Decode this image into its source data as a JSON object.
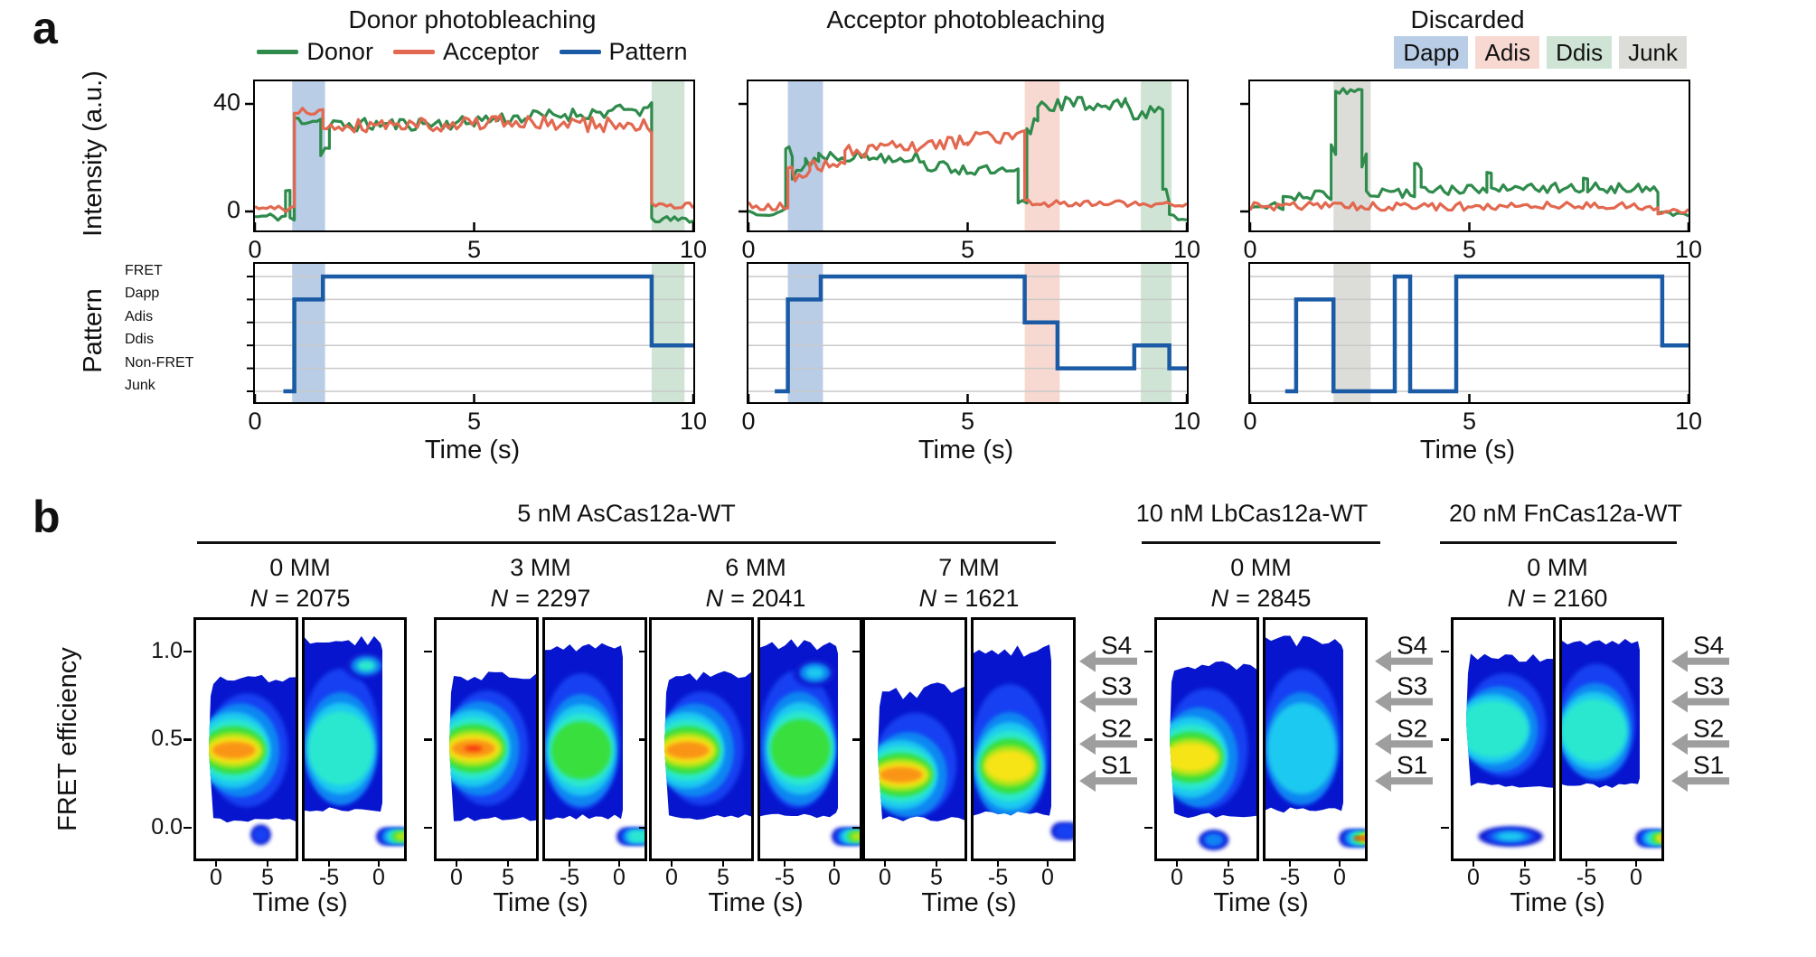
{
  "panel_labels": {
    "a": "a",
    "b": "b"
  },
  "colors": {
    "donor": "#2e8b4b",
    "acceptor": "#e2684f",
    "pattern": "#1b5aa5",
    "grid": "#c9c9c9",
    "arrow": "#9e9e9e",
    "shades": {
      "Dapp": "#b9cde6",
      "Adis": "#f8d9d2",
      "Ddis": "#cfe4d4",
      "Junk": "#dcdcd8"
    },
    "jet": [
      "#0716ce",
      "#1440f2",
      "#0f86f2",
      "#1fc9f0",
      "#2be8cf",
      "#38df3c",
      "#a8e51e",
      "#f7e414",
      "#fa9414",
      "#f5330f",
      "#ffffff"
    ]
  },
  "chart_data": {
    "type": "figure",
    "panel_a": {
      "type": "line",
      "intensity_ylabel": "Intensity (a.u.)",
      "pattern_ylabel": "Pattern",
      "xlabel": "Time (s)",
      "xlim": [
        0,
        10
      ],
      "x_ticks": [
        "0",
        "5",
        "10"
      ],
      "intensity_ylim": [
        -8,
        48
      ],
      "intensity_yticks": [
        "40",
        "0"
      ],
      "pattern_categories": [
        "FRET",
        "Dapp",
        "Adis",
        "Ddis",
        "Non-FRET",
        "Junk"
      ],
      "legend": [
        {
          "label": "Donor",
          "color": "#2e8b4b"
        },
        {
          "label": "Acceptor",
          "color": "#e2684f"
        },
        {
          "label": "Pattern",
          "color": "#1b5aa5"
        }
      ],
      "columns": [
        {
          "title": "Donor photobleaching",
          "shades": [
            {
              "t0": 0.85,
              "t1": 1.6,
              "type": "Dapp"
            },
            {
              "t0": 9.05,
              "t1": 9.8,
              "type": "Ddis"
            }
          ],
          "donor_segments": [
            [
              0,
              0.7,
              -2,
              -2,
              1.5
            ],
            [
              0.7,
              0.8,
              8,
              8,
              3
            ],
            [
              0.8,
              0.9,
              -3,
              -3,
              1
            ],
            [
              0.9,
              1.5,
              34,
              34,
              2
            ],
            [
              1.5,
              1.7,
              23,
              23,
              3
            ],
            [
              1.7,
              5,
              32,
              33,
              2.5
            ],
            [
              5,
              9.05,
              34,
              38,
              2.5
            ],
            [
              9.05,
              10,
              -3,
              -3,
              1.2
            ]
          ],
          "acceptor_segments": [
            [
              0,
              0.9,
              1,
              1,
              1.2
            ],
            [
              0.9,
              1.55,
              37,
              37,
              1.5
            ],
            [
              1.55,
              5.5,
              32,
              33,
              2.8
            ],
            [
              5.5,
              9.05,
              33,
              32,
              3
            ],
            [
              9.05,
              10,
              2,
              2,
              1.2
            ]
          ],
          "pattern_steps": [
            [
              0.65,
              0.9,
              "Junk"
            ],
            [
              0.9,
              1.55,
              "Dapp"
            ],
            [
              1.55,
              9.05,
              "FRET"
            ],
            [
              9.05,
              10,
              "Ddis"
            ]
          ]
        },
        {
          "title": "Acceptor photobleaching",
          "shades": [
            {
              "t0": 0.9,
              "t1": 1.7,
              "type": "Dapp"
            },
            {
              "t0": 6.3,
              "t1": 7.1,
              "type": "Adis"
            },
            {
              "t0": 8.95,
              "t1": 9.65,
              "type": "Ddis"
            }
          ],
          "donor_segments": [
            [
              0,
              0.85,
              0,
              0,
              1.5
            ],
            [
              0.85,
              1.0,
              22,
              22,
              4
            ],
            [
              1.0,
              1.3,
              14,
              17,
              3
            ],
            [
              1.3,
              1.6,
              19,
              19,
              3
            ],
            [
              1.6,
              4,
              21,
              20,
              2.2
            ],
            [
              4,
              6.15,
              17,
              14,
              2.2
            ],
            [
              6.15,
              6.35,
              3,
              3,
              2
            ],
            [
              6.35,
              6.6,
              28,
              36,
              4
            ],
            [
              6.6,
              8.6,
              40,
              40,
              3
            ],
            [
              8.6,
              9.45,
              38,
              36,
              3.5
            ],
            [
              9.45,
              9.6,
              6,
              6,
              3
            ],
            [
              9.6,
              10,
              -2,
              -2,
              1.2
            ]
          ],
          "acceptor_segments": [
            [
              0,
              0.9,
              2,
              2,
              1.5
            ],
            [
              0.9,
              1.4,
              14,
              14,
              3
            ],
            [
              1.4,
              2.2,
              17,
              17,
              2.2
            ],
            [
              2.2,
              5,
              22,
              26,
              2.5
            ],
            [
              5,
              6.3,
              27,
              28,
              2.5
            ],
            [
              6.3,
              10,
              3,
              3,
              1.3
            ]
          ],
          "pattern_steps": [
            [
              0.6,
              0.9,
              "Junk"
            ],
            [
              0.9,
              1.65,
              "Dapp"
            ],
            [
              1.65,
              6.3,
              "FRET"
            ],
            [
              6.3,
              7.05,
              "Adis"
            ],
            [
              7.05,
              8.8,
              "Non-FRET"
            ],
            [
              8.8,
              9.6,
              "Ddis"
            ],
            [
              9.6,
              10,
              "Non-FRET"
            ]
          ]
        },
        {
          "title": "Discarded",
          "badges": [
            {
              "label": "Dapp",
              "type": "Dapp"
            },
            {
              "label": "Adis",
              "type": "Adis"
            },
            {
              "label": "Ddis",
              "type": "Ddis"
            },
            {
              "label": "Junk",
              "type": "Junk"
            }
          ],
          "shades": [
            {
              "t0": 1.9,
              "t1": 2.75,
              "type": "Junk"
            }
          ],
          "donor_segments": [
            [
              0,
              0.75,
              2,
              2,
              1.5
            ],
            [
              0.75,
              1.85,
              6,
              6,
              1.8
            ],
            [
              1.85,
              1.95,
              25,
              25,
              4
            ],
            [
              1.95,
              2.55,
              45,
              45,
              1.5
            ],
            [
              2.55,
              2.65,
              20,
              20,
              4
            ],
            [
              2.65,
              3.75,
              7,
              7,
              1.8
            ],
            [
              3.75,
              3.9,
              17,
              17,
              2
            ],
            [
              3.9,
              5.4,
              8,
              8,
              1.8
            ],
            [
              5.4,
              5.5,
              13,
              13,
              2
            ],
            [
              5.5,
              7.6,
              8,
              9,
              2
            ],
            [
              7.6,
              7.7,
              14,
              14,
              2
            ],
            [
              7.7,
              9.3,
              9,
              8,
              2
            ],
            [
              9.3,
              10,
              -1,
              -1,
              1
            ]
          ],
          "acceptor_segments": [
            [
              0,
              9.3,
              2,
              2,
              1.6
            ],
            [
              9.3,
              10,
              0,
              0,
              1
            ]
          ],
          "pattern_steps": [
            [
              0.8,
              1.05,
              "Junk"
            ],
            [
              1.05,
              1.9,
              "Dapp"
            ],
            [
              1.9,
              3.3,
              "Junk"
            ],
            [
              3.3,
              3.65,
              "FRET"
            ],
            [
              3.65,
              4.7,
              "Junk"
            ],
            [
              4.7,
              9.4,
              "FRET"
            ],
            [
              9.4,
              10,
              "Ddis"
            ]
          ]
        }
      ]
    },
    "panel_b": {
      "type": "heatmap",
      "ylabel": "FRET efficiency",
      "xlabel": "Time (s)",
      "ylim": [
        -0.18,
        1.18
      ],
      "y_ticks": [
        "1.0",
        "0.5",
        "0.0"
      ],
      "left_xticks": [
        "0",
        "5"
      ],
      "right_xticks": [
        "-5",
        "0"
      ],
      "states": {
        "labels": [
          "S4",
          "S3",
          "S2",
          "S1"
        ],
        "values": [
          0.93,
          0.7,
          0.46,
          0.25
        ]
      },
      "groups": [
        {
          "title": "5 nM AsCas12a-WT",
          "panel_indices": [
            0,
            1,
            2,
            3
          ]
        },
        {
          "title": "10 nM LbCas12a-WT",
          "panel_indices": [
            4
          ]
        },
        {
          "title": "20 nM FnCas12a-WT",
          "panel_indices": [
            5
          ]
        }
      ],
      "panels": [
        {
          "condition": "0 MM",
          "n_sym": "N",
          "n_val": "= 2075",
          "n": 2075,
          "left": {
            "top": 0.84,
            "bottom": 0.04,
            "band": 0.44,
            "heat": 9,
            "hotx": 0.28,
            "tail": {
              "x0": 0.55,
              "x1": 0.75,
              "e": -0.04,
              "heat": 2
            }
          },
          "right": {
            "top": 1.06,
            "bottom": 0.1,
            "band": 0.45,
            "heat": 5,
            "hotx": 0.5,
            "blob": {
              "x": 0.62,
              "e": 0.92,
              "heat": 5
            },
            "bb": {
              "e": -0.05,
              "heat": 7,
              "x0": 0.72
            }
          }
        },
        {
          "condition": "3 MM",
          "n_sym": "N",
          "n_val": "= 2297",
          "n": 2297,
          "left": {
            "top": 0.86,
            "bottom": 0.05,
            "band": 0.45,
            "heat": 10,
            "hotx": 0.27
          },
          "right": {
            "top": 1.02,
            "bottom": 0.06,
            "band": 0.44,
            "heat": 6,
            "hotx": 0.5,
            "bb": {
              "e": -0.05,
              "heat": 5,
              "x0": 0.72
            }
          }
        },
        {
          "condition": "6 MM",
          "n_sym": "N",
          "n_val": "= 2041",
          "n": 2041,
          "left": {
            "top": 0.86,
            "bottom": 0.06,
            "band": 0.44,
            "heat": 9,
            "hotx": 0.26
          },
          "right": {
            "top": 1.04,
            "bottom": 0.07,
            "band": 0.45,
            "heat": 6,
            "hotx": 0.55,
            "blob": {
              "x": 0.55,
              "e": 0.88,
              "heat": 4
            },
            "bb": {
              "e": -0.05,
              "heat": 7,
              "x0": 0.72
            }
          }
        },
        {
          "condition": "7 MM",
          "n_sym": "N",
          "n_val": "= 1621",
          "n": 1621,
          "left": {
            "top": 0.78,
            "bottom": 0.05,
            "band": 0.3,
            "heat": 9,
            "hotx": 0.26,
            "jit": 10
          },
          "right": {
            "top": 1.0,
            "bottom": 0.08,
            "band": 0.35,
            "heat": 8,
            "hotx": 0.5,
            "jit": 8,
            "bb": {
              "e": -0.02,
              "heat": 2,
              "x0": 0.78
            }
          }
        },
        {
          "condition": "0 MM",
          "n_sym": "N",
          "n_val": "= 2845",
          "n": 2845,
          "left": {
            "top": 0.92,
            "bottom": 0.07,
            "band": 0.4,
            "heat": 8,
            "hotx": 0.24,
            "tail": {
              "x0": 0.42,
              "x1": 0.72,
              "e": -0.07,
              "heat": 3
            }
          },
          "right": {
            "top": 1.06,
            "bottom": 0.1,
            "band": 0.45,
            "heat": 4,
            "hotx": 0.5,
            "bb": {
              "e": -0.06,
              "heat": 10,
              "x0": 0.74
            }
          }
        },
        {
          "condition": "0 MM",
          "n_sym": "N",
          "n_val": "= 2160",
          "n": 2160,
          "left": {
            "top": 0.97,
            "bottom": 0.24,
            "band": 0.56,
            "heat": 5,
            "hotx": 0.3,
            "tail": {
              "x0": 0.25,
              "x1": 0.9,
              "e": -0.05,
              "heat": 4
            }
          },
          "right": {
            "top": 1.06,
            "bottom": 0.24,
            "band": 0.55,
            "heat": 5,
            "hotx": 0.45,
            "bb": {
              "e": -0.06,
              "heat": 9,
              "x0": 0.74
            }
          }
        }
      ]
    }
  }
}
